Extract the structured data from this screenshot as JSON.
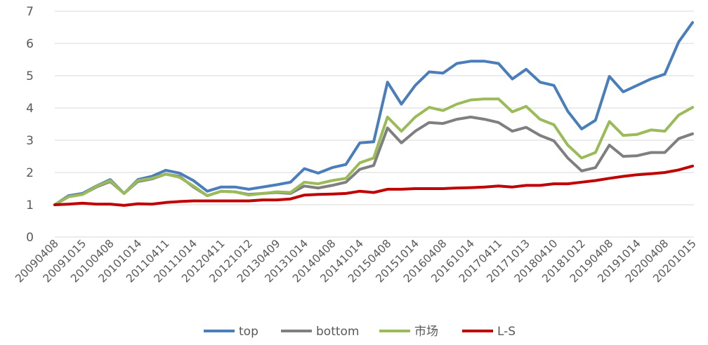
{
  "chart_data": {
    "type": "line",
    "title": "",
    "xlabel": "",
    "ylabel": "",
    "ylim": [
      0,
      7
    ],
    "yticks": [
      0,
      1,
      2,
      3,
      4,
      5,
      6,
      7
    ],
    "grid": "horizontal",
    "legend_position": "bottom",
    "x_tick_labels": [
      "20090408",
      "20091015",
      "20100408",
      "20101014",
      "20110411",
      "20111014",
      "20120411",
      "20121012",
      "20130409",
      "20131014",
      "20140408",
      "20141014",
      "20150408",
      "20151014",
      "20160408",
      "20161014",
      "20170411",
      "20171013",
      "20180410",
      "20181012",
      "20190408",
      "20191014",
      "20200408",
      "20201015"
    ],
    "series": [
      {
        "name": "top",
        "color": "#4a7ebb",
        "values": [
          1.0,
          1.28,
          1.35,
          1.58,
          1.78,
          1.35,
          1.78,
          1.88,
          2.07,
          1.98,
          1.75,
          1.42,
          1.55,
          1.55,
          1.48,
          1.55,
          1.62,
          1.7,
          2.12,
          1.98,
          2.15,
          2.25,
          2.92,
          2.95,
          4.8,
          4.12,
          4.7,
          5.12,
          5.08,
          5.38,
          5.45,
          5.45,
          5.38,
          4.9,
          5.2,
          4.8,
          4.7,
          3.9,
          3.35,
          3.62,
          4.98,
          4.5,
          4.7,
          4.9,
          5.05,
          6.05,
          6.65
        ]
      },
      {
        "name": "bottom",
        "color": "#7f7f7f",
        "values": [
          1.0,
          1.25,
          1.32,
          1.55,
          1.72,
          1.35,
          1.72,
          1.8,
          1.95,
          1.88,
          1.55,
          1.28,
          1.42,
          1.4,
          1.32,
          1.35,
          1.38,
          1.35,
          1.58,
          1.52,
          1.6,
          1.7,
          2.1,
          2.22,
          3.38,
          2.92,
          3.28,
          3.55,
          3.52,
          3.65,
          3.72,
          3.65,
          3.55,
          3.28,
          3.4,
          3.15,
          2.98,
          2.45,
          2.05,
          2.15,
          2.85,
          2.5,
          2.52,
          2.62,
          2.62,
          3.05,
          3.2
        ]
      },
      {
        "name": "市场",
        "color": "#9bbb59",
        "values": [
          1.0,
          1.25,
          1.32,
          1.57,
          1.75,
          1.35,
          1.75,
          1.82,
          1.95,
          1.85,
          1.58,
          1.28,
          1.42,
          1.4,
          1.3,
          1.35,
          1.4,
          1.38,
          1.7,
          1.65,
          1.75,
          1.82,
          2.3,
          2.45,
          3.72,
          3.28,
          3.72,
          4.02,
          3.92,
          4.12,
          4.25,
          4.28,
          4.28,
          3.88,
          4.05,
          3.65,
          3.48,
          2.85,
          2.45,
          2.62,
          3.58,
          3.15,
          3.18,
          3.32,
          3.28,
          3.78,
          4.02
        ]
      },
      {
        "name": "L-S",
        "color": "#c00000",
        "values": [
          1.0,
          1.02,
          1.05,
          1.02,
          1.02,
          0.98,
          1.03,
          1.02,
          1.07,
          1.1,
          1.12,
          1.12,
          1.12,
          1.12,
          1.12,
          1.15,
          1.15,
          1.18,
          1.3,
          1.32,
          1.33,
          1.35,
          1.42,
          1.38,
          1.48,
          1.48,
          1.5,
          1.5,
          1.5,
          1.52,
          1.53,
          1.55,
          1.58,
          1.55,
          1.6,
          1.6,
          1.65,
          1.65,
          1.7,
          1.75,
          1.82,
          1.88,
          1.93,
          1.96,
          2.0,
          2.08,
          2.2
        ]
      }
    ]
  }
}
